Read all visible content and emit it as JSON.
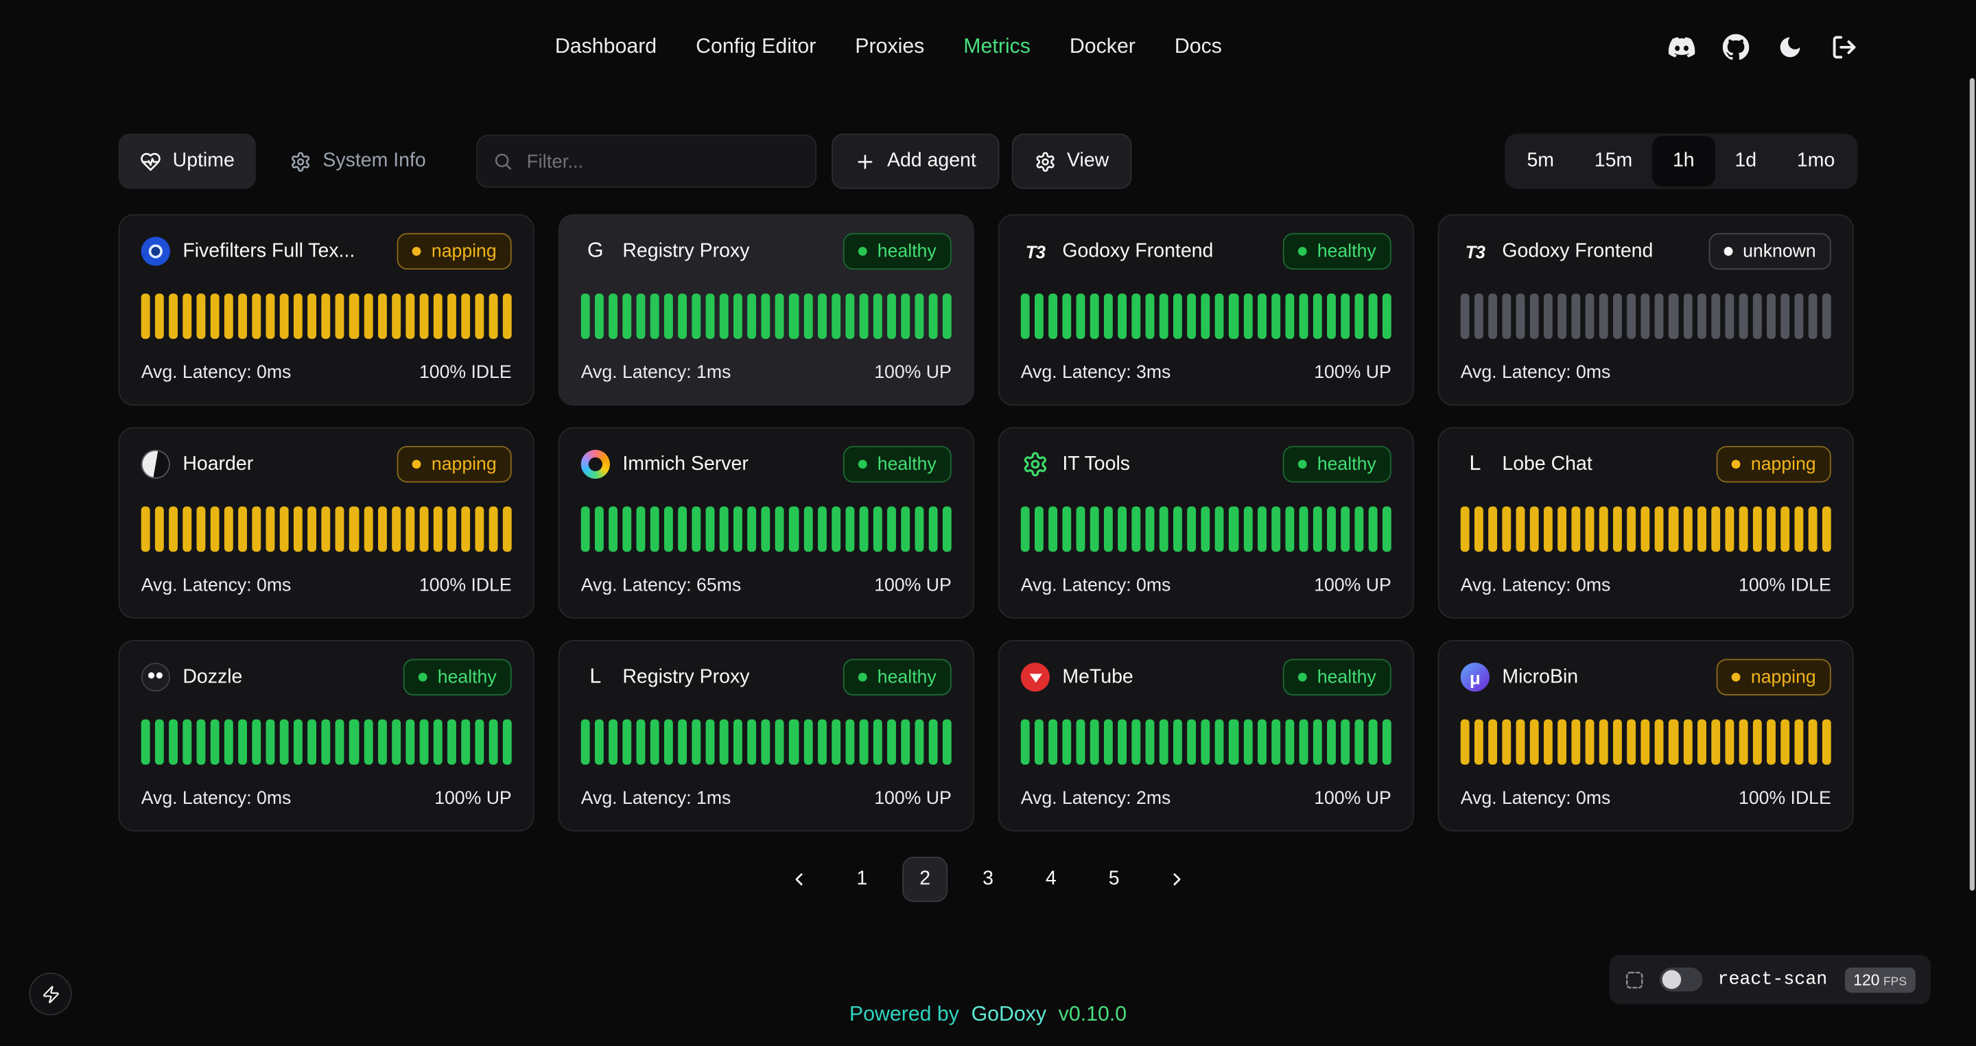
{
  "nav": {
    "items": [
      {
        "label": "Dashboard",
        "active": false
      },
      {
        "label": "Config Editor",
        "active": false
      },
      {
        "label": "Proxies",
        "active": false
      },
      {
        "label": "Metrics",
        "active": true
      },
      {
        "label": "Docker",
        "active": false
      },
      {
        "label": "Docs",
        "active": false
      }
    ],
    "right_icons": [
      "discord-icon",
      "github-icon",
      "moon-icon",
      "logout-icon"
    ]
  },
  "toolbar": {
    "uptime_label": "Uptime",
    "system_info_label": "System Info",
    "filter_placeholder": "Filter...",
    "add_agent_label": "Add agent",
    "view_label": "View",
    "icons": [
      "heart-pulse-icon",
      "gear-icon",
      "search-icon",
      "plus-icon",
      "gear-icon"
    ]
  },
  "time_ranges": [
    {
      "label": "5m",
      "active": false
    },
    {
      "label": "15m",
      "active": false
    },
    {
      "label": "1h",
      "active": true
    },
    {
      "label": "1d",
      "active": false
    },
    {
      "label": "1mo",
      "active": false
    }
  ],
  "cards": [
    {
      "name": "Fivefilters Full Tex...",
      "icon": {
        "kind": "fivefilters",
        "name": "fivefilters-icon"
      },
      "status": "napping",
      "status_label": "napping",
      "latency": "Avg. Latency: 0ms",
      "uptime": "100% IDLE",
      "bars": 27,
      "highlighted": false
    },
    {
      "name": "Registry Proxy",
      "icon": {
        "kind": "letter",
        "text": "G",
        "name": "registry-proxy-icon"
      },
      "status": "healthy",
      "status_label": "healthy",
      "latency": "Avg. Latency: 1ms",
      "uptime": "100% UP",
      "bars": 27,
      "highlighted": true
    },
    {
      "name": "Godoxy Frontend",
      "icon": {
        "kind": "letter",
        "text": "T3",
        "italic": true,
        "name": "godoxy-frontend-icon"
      },
      "status": "healthy",
      "status_label": "healthy",
      "latency": "Avg. Latency: 3ms",
      "uptime": "100% UP",
      "bars": 27,
      "highlighted": false
    },
    {
      "name": "Godoxy Frontend",
      "icon": {
        "kind": "letter",
        "text": "T3",
        "italic": true,
        "name": "godoxy-frontend-icon"
      },
      "status": "unknown",
      "status_label": "unknown",
      "latency": "Avg. Latency: 0ms",
      "uptime": "",
      "bars": 27,
      "highlighted": false
    },
    {
      "name": "Hoarder",
      "icon": {
        "kind": "hoarder",
        "name": "hoarder-icon"
      },
      "status": "napping",
      "status_label": "napping",
      "latency": "Avg. Latency: 0ms",
      "uptime": "100% IDLE",
      "bars": 27,
      "highlighted": false
    },
    {
      "name": "Immich Server",
      "icon": {
        "kind": "immich",
        "name": "immich-icon"
      },
      "status": "healthy",
      "status_label": "healthy",
      "latency": "Avg. Latency: 65ms",
      "uptime": "100% UP",
      "bars": 27,
      "highlighted": false
    },
    {
      "name": "IT Tools",
      "icon": {
        "kind": "gear-green",
        "name": "it-tools-icon"
      },
      "status": "healthy",
      "status_label": "healthy",
      "latency": "Avg. Latency: 0ms",
      "uptime": "100% UP",
      "bars": 27,
      "highlighted": false
    },
    {
      "name": "Lobe Chat",
      "icon": {
        "kind": "letter",
        "text": "L",
        "name": "lobe-chat-icon"
      },
      "status": "napping",
      "status_label": "napping",
      "latency": "Avg. Latency: 0ms",
      "uptime": "100% IDLE",
      "bars": 27,
      "highlighted": false
    },
    {
      "name": "Dozzle",
      "icon": {
        "kind": "dozzle",
        "name": "dozzle-icon"
      },
      "status": "healthy",
      "status_label": "healthy",
      "latency": "Avg. Latency: 0ms",
      "uptime": "100% UP",
      "bars": 27,
      "highlighted": false
    },
    {
      "name": "Registry Proxy",
      "icon": {
        "kind": "letter",
        "text": "L",
        "name": "registry-proxy-icon"
      },
      "status": "healthy",
      "status_label": "healthy",
      "latency": "Avg. Latency: 1ms",
      "uptime": "100% UP",
      "bars": 27,
      "highlighted": false
    },
    {
      "name": "MeTube",
      "icon": {
        "kind": "metube",
        "name": "metube-icon"
      },
      "status": "healthy",
      "status_label": "healthy",
      "latency": "Avg. Latency: 2ms",
      "uptime": "100% UP",
      "bars": 27,
      "highlighted": false
    },
    {
      "name": "MicroBin",
      "icon": {
        "kind": "microbin",
        "name": "microbin-icon"
      },
      "status": "napping",
      "status_label": "napping",
      "latency": "Avg. Latency: 0ms",
      "uptime": "100% IDLE",
      "bars": 27,
      "highlighted": false
    }
  ],
  "pagination": {
    "pages": [
      "1",
      "2",
      "3",
      "4",
      "5"
    ],
    "active": "2",
    "icons": [
      "chevron-left-icon",
      "chevron-right-icon"
    ]
  },
  "react_scan": {
    "label": "react-scan",
    "fps": "120",
    "fps_unit": "FPS",
    "toggle_on": false,
    "icons": [
      "inspect-icon"
    ]
  },
  "footer": {
    "powered_by": "Powered by",
    "brand": "GoDoxy",
    "version": "v0.10.0"
  },
  "corner": {
    "icons": [
      "zap-icon"
    ]
  },
  "colors": {
    "page_bg": "#0a0a0a",
    "card_bg": "#151518",
    "card_border": "#26262b",
    "accent_green": "#4ade80",
    "footer_teal": "#2dd4bf",
    "footer_teal_light": "#5eead4",
    "status": {
      "napping": {
        "bg": "#2a1e06",
        "border": "#8a6a1a",
        "text": "#f2b51b",
        "dot": "#f2b51b",
        "bar": "#e9b513"
      },
      "healthy": {
        "bg": "#07290f",
        "border": "#1a6b33",
        "text": "#43de74",
        "dot": "#27c654",
        "bar": "#27c654"
      },
      "unknown": {
        "bg": "#1b1b1f",
        "border": "#45454c",
        "text": "#fafafa",
        "dot": "#fafafa",
        "bar": "#52555c"
      }
    }
  }
}
